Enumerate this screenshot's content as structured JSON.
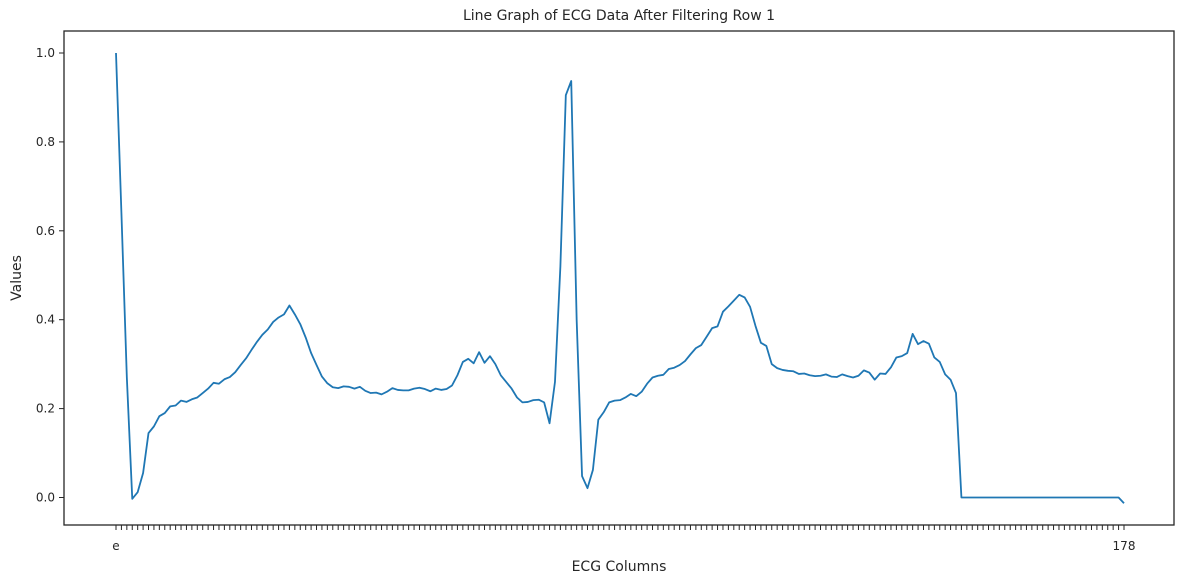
{
  "chart_data": {
    "type": "line",
    "title": "Line Graph of ECG Data After Filtering Row 1",
    "xlabel": "ECG Columns",
    "ylabel": "Values",
    "ylim": [
      -0.06,
      1.05
    ],
    "yticks": [
      0.0,
      0.2,
      0.4,
      0.6,
      0.8,
      1.0
    ],
    "ytick_labels": [
      "0.0",
      "0.2",
      "0.4",
      "0.6",
      "0.8",
      "1.0"
    ],
    "grid": false,
    "legend": "none",
    "color": "#1f77b4",
    "xtick_labels_visible": [
      "e",
      "178"
    ],
    "series": [
      {
        "values": [
          1.0,
          0.64,
          0.27,
          -0.003,
          0.012,
          0.055,
          0.145,
          0.16,
          0.183,
          0.19,
          0.205,
          0.207,
          0.218,
          0.215,
          0.221,
          0.225,
          0.235,
          0.245,
          0.258,
          0.256,
          0.266,
          0.271,
          0.282,
          0.298,
          0.313,
          0.332,
          0.35,
          0.366,
          0.378,
          0.395,
          0.405,
          0.412,
          0.432,
          0.412,
          0.39,
          0.36,
          0.325,
          0.298,
          0.272,
          0.257,
          0.248,
          0.246,
          0.25,
          0.249,
          0.245,
          0.249,
          0.24,
          0.235,
          0.236,
          0.232,
          0.238,
          0.246,
          0.242,
          0.241,
          0.241,
          0.245,
          0.247,
          0.244,
          0.239,
          0.245,
          0.242,
          0.244,
          0.252,
          0.275,
          0.305,
          0.312,
          0.302,
          0.327,
          0.303,
          0.318,
          0.3,
          0.275,
          0.26,
          0.245,
          0.225,
          0.214,
          0.215,
          0.219,
          0.22,
          0.214,
          0.167,
          0.26,
          0.52,
          0.905,
          0.937,
          0.4,
          0.048,
          0.021,
          0.062,
          0.175,
          0.192,
          0.214,
          0.218,
          0.219,
          0.225,
          0.233,
          0.228,
          0.238,
          0.256,
          0.27,
          0.274,
          0.276,
          0.289,
          0.292,
          0.298,
          0.307,
          0.322,
          0.336,
          0.343,
          0.362,
          0.381,
          0.385,
          0.418,
          0.43,
          0.443,
          0.456,
          0.45,
          0.429,
          0.386,
          0.348,
          0.341,
          0.3,
          0.291,
          0.287,
          0.285,
          0.284,
          0.278,
          0.279,
          0.275,
          0.273,
          0.274,
          0.277,
          0.272,
          0.271,
          0.277,
          0.273,
          0.27,
          0.274,
          0.286,
          0.281,
          0.265,
          0.279,
          0.278,
          0.293,
          0.315,
          0.318,
          0.325,
          0.368,
          0.345,
          0.352,
          0.346,
          0.315,
          0.305,
          0.277,
          0.265,
          0.235,
          0.0,
          0.0,
          0.0,
          0.0,
          0.0,
          0.0,
          0.0,
          0.0,
          0.0,
          0.0,
          0.0,
          0.0,
          0.0,
          0.0,
          0.0,
          0.0,
          0.0,
          0.0,
          0.0,
          0.0,
          0.0,
          0.0,
          0.0,
          0.0,
          0.0,
          0.0,
          0.0,
          0.0,
          0.0,
          0.0,
          -0.013
        ]
      }
    ]
  }
}
